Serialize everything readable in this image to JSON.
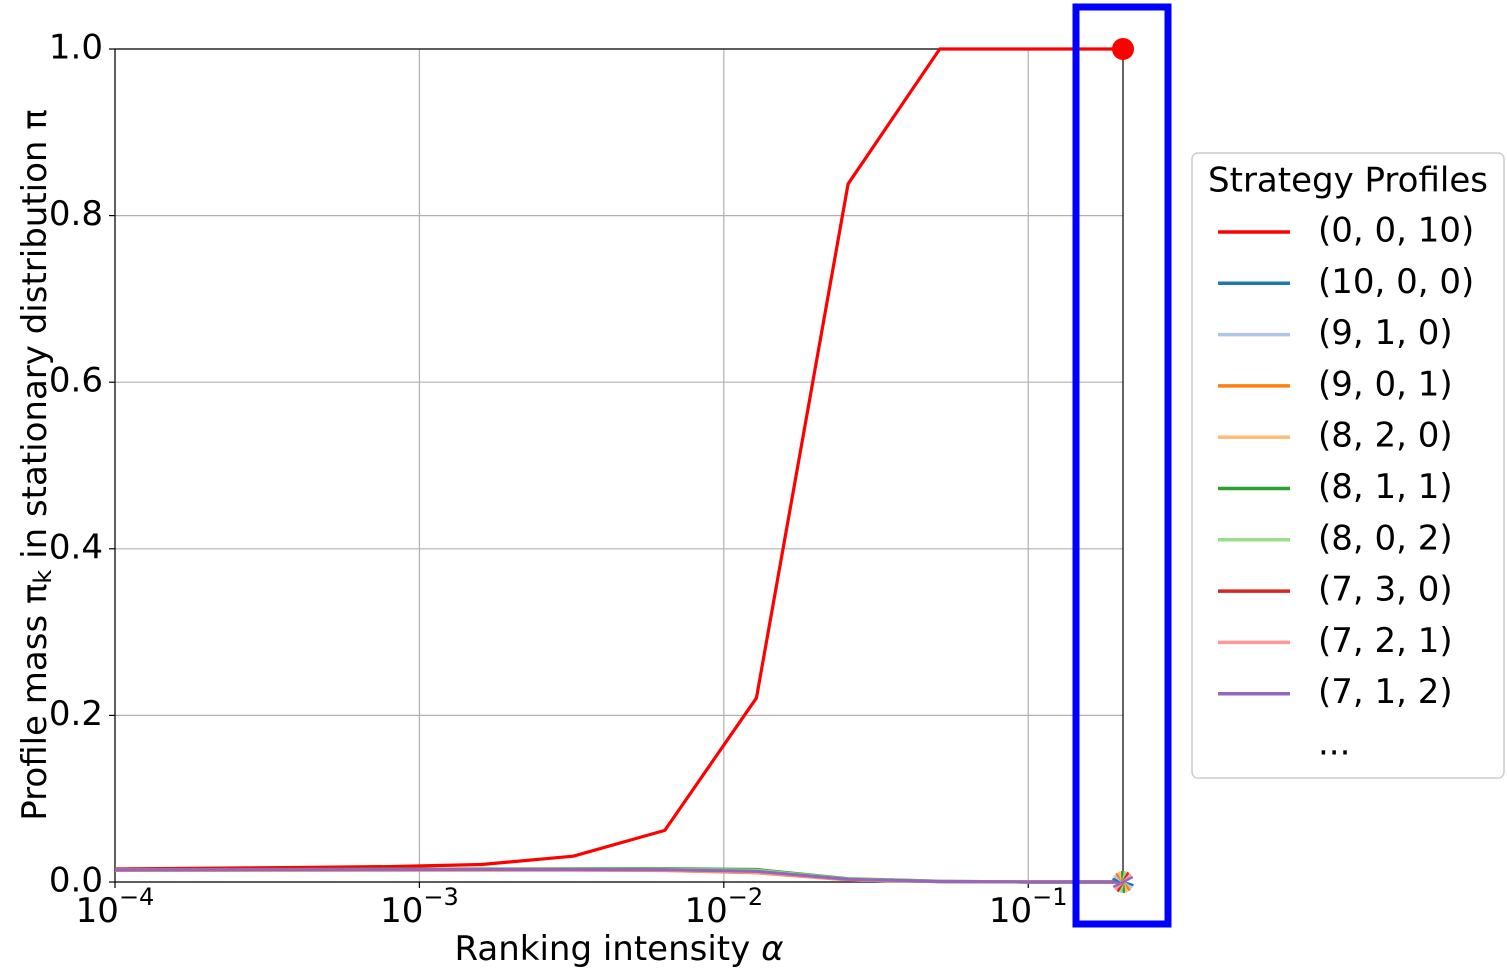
{
  "chart_data": {
    "type": "line",
    "xlabel_parts": [
      "Ranking intensity ",
      "α"
    ],
    "ylabel_parts": [
      "Profile mass π",
      "k",
      " in stationary distribution π"
    ],
    "x": [
      0.0001,
      0.0002,
      0.0004,
      0.0008,
      0.0016,
      0.0032,
      0.0064,
      0.0128,
      0.0256,
      0.0512,
      0.1024,
      0.2048
    ],
    "xscale": "log",
    "xlim": [
      0.0001,
      0.2048
    ],
    "xticks": [
      {
        "value": 0.0001,
        "label": "10",
        "exponent": "−4"
      },
      {
        "value": 0.001,
        "label": "10",
        "exponent": "−3"
      },
      {
        "value": 0.01,
        "label": "10",
        "exponent": "−2"
      },
      {
        "value": 0.1,
        "label": "10",
        "exponent": "−1"
      }
    ],
    "ylim": [
      0,
      1
    ],
    "yticks": [
      {
        "value": 0,
        "label": "0.0"
      },
      {
        "value": 0.2,
        "label": "0.2"
      },
      {
        "value": 0.4,
        "label": "0.4"
      },
      {
        "value": 0.6,
        "label": "0.6"
      },
      {
        "value": 0.8,
        "label": "0.8"
      },
      {
        "value": 1,
        "label": "1.0"
      }
    ],
    "grid": true,
    "end_markers": true,
    "legend_title": "Strategy Profiles",
    "legend_more": "...",
    "series": [
      {
        "name": "(0, 0, 10)",
        "color": "#ff0000",
        "values": [
          0.0156,
          0.0165,
          0.0175,
          0.0185,
          0.021,
          0.031,
          0.062,
          0.221,
          0.838,
          1.0,
          1.0,
          1.0
        ]
      },
      {
        "name": "(10, 0, 0)",
        "color": "#1f77b4",
        "values": [
          0.0145,
          0.0145,
          0.0146,
          0.0147,
          0.0148,
          0.0148,
          0.0145,
          0.012,
          0.003,
          0.0005,
          0,
          0
        ]
      },
      {
        "name": "(9, 1, 0)",
        "color": "#aec7e8",
        "values": [
          0.0145,
          0.0146,
          0.0147,
          0.0148,
          0.0149,
          0.015,
          0.0148,
          0.0125,
          0.003,
          0.0005,
          0,
          0
        ]
      },
      {
        "name": "(9, 0, 1)",
        "color": "#ff7f0e",
        "values": [
          0.014,
          0.014,
          0.0141,
          0.0142,
          0.0142,
          0.0142,
          0.0138,
          0.011,
          0.0025,
          0.0004,
          0,
          0
        ]
      },
      {
        "name": "(8, 2, 0)",
        "color": "#ffbb78",
        "values": [
          0.0142,
          0.0143,
          0.0144,
          0.0145,
          0.0146,
          0.0146,
          0.0142,
          0.0115,
          0.0027,
          0.0004,
          0,
          0
        ]
      },
      {
        "name": "(8, 1, 1)",
        "color": "#2ca02c",
        "values": [
          0.015,
          0.015,
          0.0152,
          0.0154,
          0.0156,
          0.0158,
          0.016,
          0.015,
          0.004,
          0.001,
          0,
          0
        ]
      },
      {
        "name": "(8, 0, 2)",
        "color": "#98df8a",
        "values": [
          0.0147,
          0.0148,
          0.0149,
          0.015,
          0.0151,
          0.0152,
          0.0152,
          0.014,
          0.0035,
          0.0008,
          0,
          0
        ]
      },
      {
        "name": "(7, 3, 0)",
        "color": "#d62728",
        "values": [
          0.0144,
          0.0145,
          0.0146,
          0.0147,
          0.0147,
          0.0147,
          0.0144,
          0.0118,
          0.0028,
          0.0005,
          0,
          0
        ]
      },
      {
        "name": "(7, 2, 1)",
        "color": "#ff9896",
        "values": [
          0.0143,
          0.0144,
          0.0145,
          0.0146,
          0.0146,
          0.0146,
          0.0143,
          0.0116,
          0.0027,
          0.0005,
          0,
          0
        ]
      },
      {
        "name": "(7, 1, 2)",
        "color": "#9467bd",
        "values": [
          0.0146,
          0.0147,
          0.0148,
          0.0149,
          0.015,
          0.015,
          0.0148,
          0.0128,
          0.0032,
          0.0006,
          0,
          0
        ]
      }
    ]
  }
}
